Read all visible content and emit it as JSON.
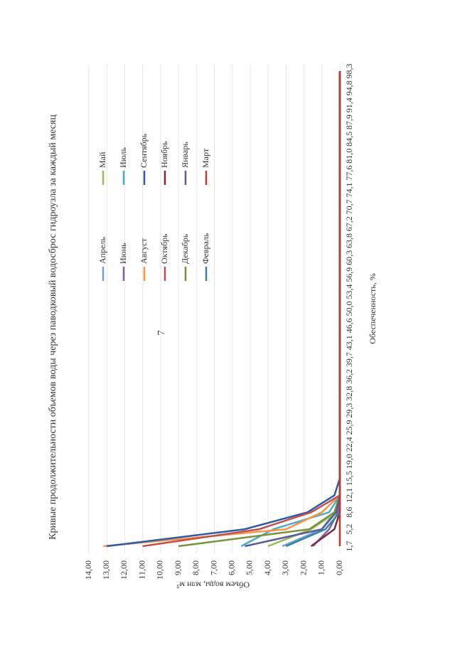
{
  "page_number": "7",
  "chart_data": {
    "type": "line",
    "title": "Кривые продолжительности объемов воды через паводковый водосброс гидроузла за каждый месяц",
    "x_label": "Обеспеченность, %",
    "y_label": "Объем воды, млн м³",
    "categories": [
      "1,7",
      "5,2",
      "8,6",
      "12,1",
      "15,5",
      "19,0",
      "22,4",
      "25,9",
      "29,3",
      "32,8",
      "36,2",
      "39,7",
      "43,1",
      "46,6",
      "50,0",
      "53,4",
      "56,9",
      "60,3",
      "63,8",
      "67,2",
      "70,7",
      "74,1",
      "77,6",
      "81,0",
      "84,5",
      "87,9",
      "91,4",
      "94,8",
      "98,3"
    ],
    "ylim": [
      0,
      14
    ],
    "yticks": [
      {
        "value": 0,
        "label": "0,00"
      },
      {
        "value": 1,
        "label": "1,00"
      },
      {
        "value": 2,
        "label": "2,00"
      },
      {
        "value": 3,
        "label": "3,00"
      },
      {
        "value": 4,
        "label": "4,00"
      },
      {
        "value": 5,
        "label": "5,00"
      },
      {
        "value": 6,
        "label": "6,00"
      },
      {
        "value": 7,
        "label": "7,00"
      },
      {
        "value": 8,
        "label": "8,00"
      },
      {
        "value": 9,
        "label": "9,00"
      },
      {
        "value": 10,
        "label": "10,00"
      },
      {
        "value": 11,
        "label": "11,00"
      },
      {
        "value": 12,
        "label": "12,00"
      },
      {
        "value": 13,
        "label": "13,00"
      },
      {
        "value": 14,
        "label": "14,00"
      }
    ],
    "grid": true,
    "series": [
      {
        "name": "Апрель",
        "color": "#6fa0dc",
        "values": [
          3.2,
          1.0,
          0.3,
          0,
          0,
          0,
          0,
          0,
          0,
          0,
          0,
          0,
          0,
          0,
          0,
          0,
          0,
          0,
          0,
          0,
          0,
          0,
          0,
          0,
          0,
          0,
          0,
          0,
          0
        ]
      },
      {
        "name": "Май",
        "color": "#9bbb59",
        "values": [
          4.0,
          1.6,
          0.2,
          0,
          0,
          0,
          0,
          0,
          0,
          0,
          0,
          0,
          0,
          0,
          0,
          0,
          0,
          0,
          0,
          0,
          0,
          0,
          0,
          0,
          0,
          0,
          0,
          0,
          0
        ]
      },
      {
        "name": "Июнь",
        "color": "#8064a2",
        "values": [
          1.5,
          0.6,
          0.1,
          0,
          0,
          0,
          0,
          0,
          0,
          0,
          0,
          0,
          0,
          0,
          0,
          0,
          0,
          0,
          0,
          0,
          0,
          0,
          0,
          0,
          0,
          0,
          0,
          0,
          0
        ]
      },
      {
        "name": "Июль",
        "color": "#4bacc6",
        "values": [
          5.5,
          3.7,
          0.6,
          0,
          0,
          0,
          0,
          0,
          0,
          0,
          0,
          0,
          0,
          0,
          0,
          0,
          0,
          0,
          0,
          0,
          0,
          0,
          0,
          0,
          0,
          0,
          0,
          0,
          0
        ]
      },
      {
        "name": "Август",
        "color": "#f79646",
        "values": [
          13.2,
          3.0,
          1.0,
          0,
          0,
          0,
          0,
          0,
          0,
          0,
          0,
          0,
          0,
          0,
          0,
          0,
          0,
          0,
          0,
          0,
          0,
          0,
          0,
          0,
          0,
          0,
          0,
          0,
          0
        ]
      },
      {
        "name": "Сентябрь",
        "color": "#2e5aa8",
        "values": [
          13.0,
          5.3,
          1.8,
          0.3,
          0,
          0,
          0,
          0,
          0,
          0,
          0,
          0,
          0,
          0,
          0,
          0,
          0,
          0,
          0,
          0,
          0,
          0,
          0,
          0,
          0,
          0,
          0,
          0,
          0
        ]
      },
      {
        "name": "Октябрь",
        "color": "#c0504d",
        "values": [
          11.0,
          4.5,
          1.6,
          0,
          0,
          0,
          0,
          0,
          0,
          0,
          0,
          0,
          0,
          0,
          0,
          0,
          0,
          0,
          0,
          0,
          0,
          0,
          0,
          0,
          0,
          0,
          0,
          0,
          0
        ]
      },
      {
        "name": "Ноябрь",
        "color": "#7f2a3a",
        "values": [
          1.6,
          0.3,
          0,
          0,
          0,
          0,
          0,
          0,
          0,
          0,
          0,
          0,
          0,
          0,
          0,
          0,
          0,
          0,
          0,
          0,
          0,
          0,
          0,
          0,
          0,
          0,
          0,
          0,
          0
        ]
      },
      {
        "name": "Декабрь",
        "color": "#77933c",
        "values": [
          9.0,
          1.7,
          0.3,
          0,
          0,
          0,
          0,
          0,
          0,
          0,
          0,
          0,
          0,
          0,
          0,
          0,
          0,
          0,
          0,
          0,
          0,
          0,
          0,
          0,
          0,
          0,
          0,
          0,
          0
        ]
      },
      {
        "name": "Январь",
        "color": "#5a5a9a",
        "values": [
          5.3,
          1.0,
          0.2,
          0,
          0,
          0,
          0,
          0,
          0,
          0,
          0,
          0,
          0,
          0,
          0,
          0,
          0,
          0,
          0,
          0,
          0,
          0,
          0,
          0,
          0,
          0,
          0,
          0,
          0
        ]
      },
      {
        "name": "Февраль",
        "color": "#31859c",
        "values": [
          3.0,
          0.8,
          0,
          0,
          0,
          0,
          0,
          0,
          0,
          0,
          0,
          0,
          0,
          0,
          0,
          0,
          0,
          0,
          0,
          0,
          0,
          0,
          0,
          0,
          0,
          0,
          0,
          0,
          0
        ]
      },
      {
        "name": "Март",
        "color": "#c0392b",
        "values": [
          0,
          0,
          0,
          0,
          0,
          0,
          0,
          0,
          0,
          0,
          0,
          0,
          0,
          0,
          0,
          0,
          0,
          0,
          0,
          0,
          0,
          0,
          0,
          0,
          0,
          0,
          0,
          0,
          0
        ]
      }
    ]
  }
}
